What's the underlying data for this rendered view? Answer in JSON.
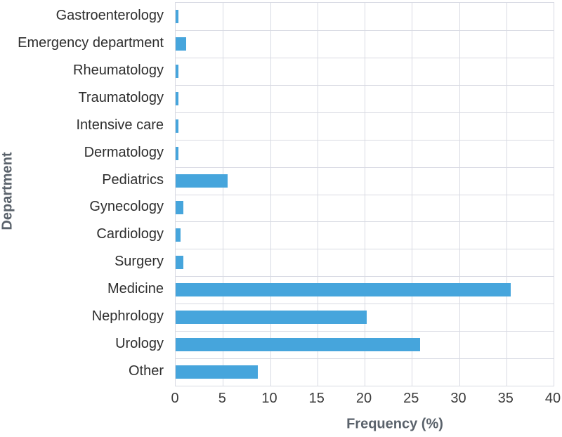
{
  "chart_data": {
    "type": "bar",
    "orientation": "horizontal",
    "title": "",
    "xlabel": "Frequency (%)",
    "ylabel": "Department",
    "categories": [
      "Gastroenterology",
      "Emergency department",
      "Rheumatology",
      "Traumatology",
      "Intensive care",
      "Dermatology",
      "Pediatrics",
      "Gynecology",
      "Cardiology",
      "Surgery",
      "Medicine",
      "Nephrology",
      "Urology",
      "Other"
    ],
    "values": [
      0.3,
      1.1,
      0.3,
      0.3,
      0.3,
      0.3,
      5.5,
      0.8,
      0.5,
      0.8,
      35.5,
      20.2,
      25.9,
      8.7
    ],
    "xlim": [
      0,
      40
    ],
    "xticks": [
      0,
      5,
      10,
      15,
      20,
      25,
      30,
      35,
      40
    ],
    "grid": true,
    "legend": "none",
    "bar_color": "#46a5dc",
    "grid_color": "#d8dae3",
    "axis_title_color": "#5a626b",
    "tick_label_color": "#3d3d3d",
    "category_label_color": "#2e2e2e",
    "background_color": "#ffffff"
  }
}
